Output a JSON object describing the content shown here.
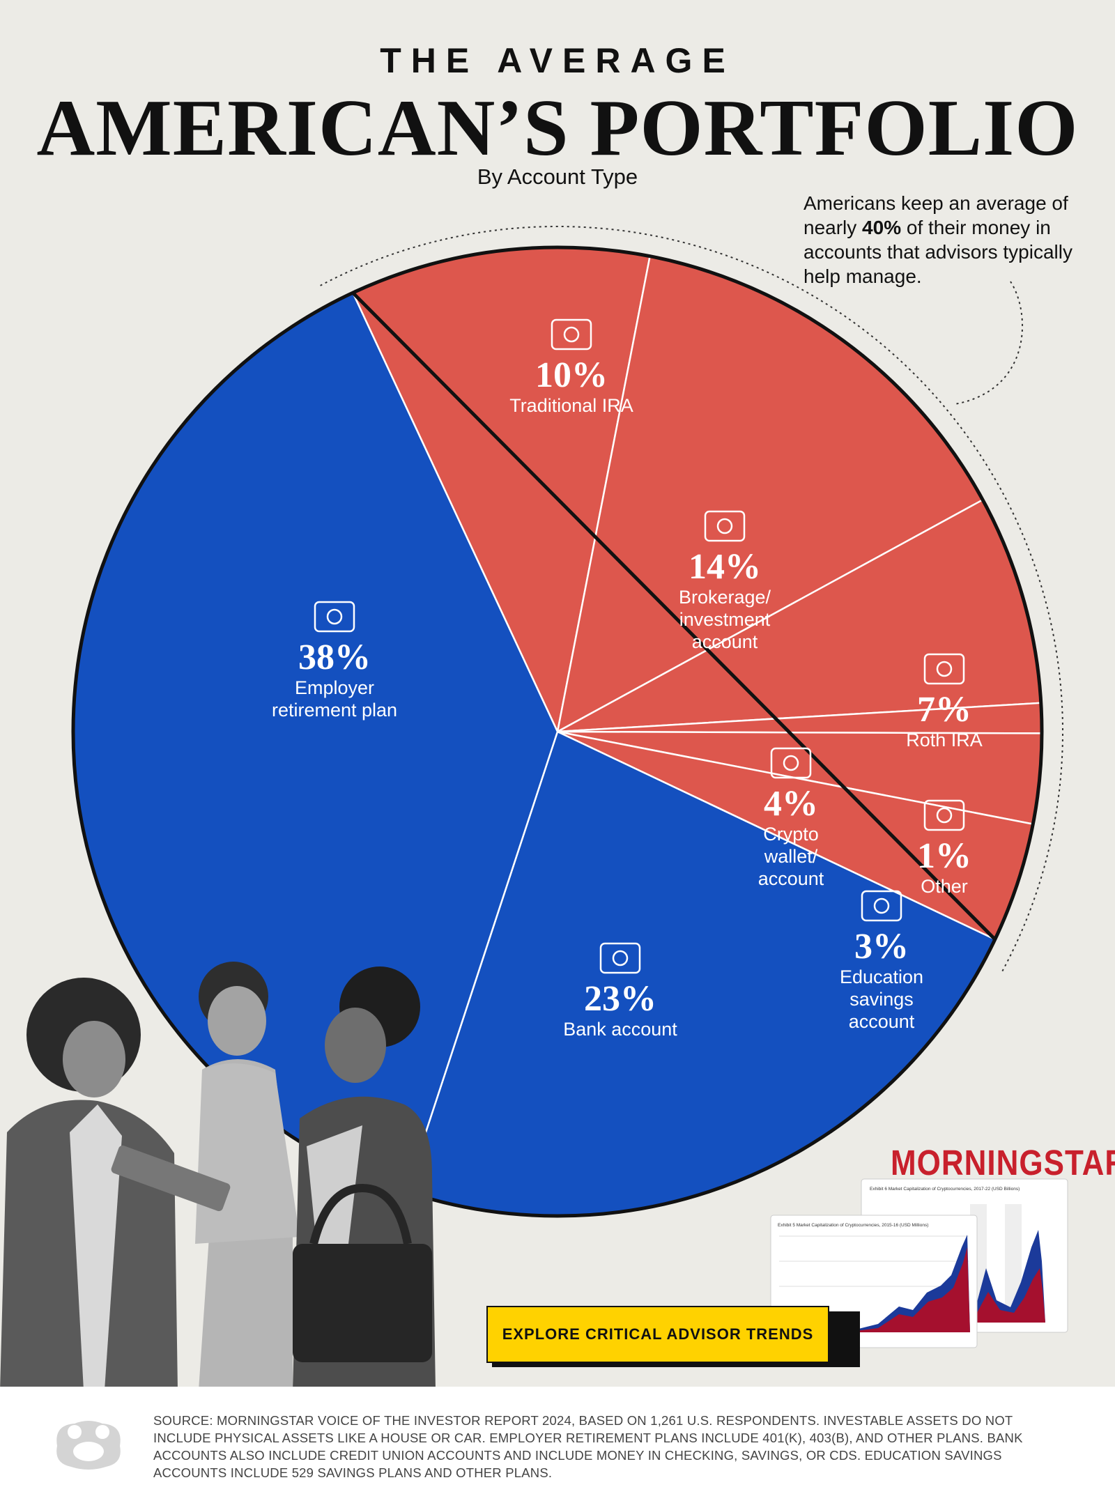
{
  "header": {
    "kicker": "THE AVERAGE",
    "title": "AMERICAN’S PORTFOLIO",
    "subtitle": "By Account Type"
  },
  "callout": {
    "text_before": "Americans keep an average of nearly ",
    "text_bold": "40%",
    "text_after": " of their money in accounts that advisors typically help manage."
  },
  "colors": {
    "blue": "#1450bf",
    "red": "#dd574d",
    "background": "#ecebe6",
    "cta": "#ffd200",
    "brand": "#c8202c"
  },
  "chart_data": {
    "type": "pie",
    "title": "THE AVERAGE AMERICAN’S PORTFOLIO",
    "subtitle": "By Account Type",
    "unit": "%",
    "slices": [
      {
        "label_lines": [
          "Employer",
          "retirement plan"
        ],
        "value": 38,
        "display": "38%",
        "group": "blue",
        "icon": "elderly-couple-icon"
      },
      {
        "label_lines": [
          "Bank account"
        ],
        "value": 23,
        "display": "23%",
        "group": "blue",
        "icon": "bank-icon"
      },
      {
        "label_lines": [
          "Traditional IRA"
        ],
        "value": 10,
        "display": "10%",
        "group": "red",
        "icon": "safe-tax-icon"
      },
      {
        "label_lines": [
          "Brokerage/",
          "investment",
          "account"
        ],
        "value": 14,
        "display": "14%",
        "group": "red",
        "icon": "growth-chart-icon"
      },
      {
        "label_lines": [
          "Roth IRA"
        ],
        "value": 7,
        "display": "7%",
        "group": "red",
        "icon": "tax-safe-icon"
      },
      {
        "label_lines": [
          "Crypto",
          "wallet/",
          "account"
        ],
        "value": 4,
        "display": "4%",
        "group": "red",
        "icon": "wallet-icon"
      },
      {
        "label_lines": [
          "Other"
        ],
        "value": 1,
        "display": "1%",
        "group": "red",
        "icon": "magnifier-icon"
      },
      {
        "label_lines": [
          "Education",
          "savings",
          "account"
        ],
        "value": 3,
        "display": "3%",
        "group": "red",
        "icon": "graduation-cap-icon"
      }
    ]
  },
  "brand": {
    "name": "MORNINGSTAR",
    "mark": "®",
    "thumb1_title": "Exhibit 6 Market Capitalization of Cryptocurrencies, 2017-22 (USD Billions)",
    "thumb2_title": "Exhibit 5 Market Capitalization of Cryptocurrencies, 2015-16 (USD Millions)"
  },
  "cta": {
    "label": "EXPLORE CRITICAL ADVISOR TRENDS"
  },
  "footer": {
    "source": "SOURCE: MORNINGSTAR VOICE OF THE INVESTOR REPORT 2024, BASED ON 1,261 U.S. RESPONDENTS. INVESTABLE ASSETS DO NOT INCLUDE PHYSICAL ASSETS LIKE A HOUSE OR CAR. EMPLOYER RETIREMENT PLANS INCLUDE 401(K), 403(B), AND OTHER PLANS. BANK ACCOUNTS ALSO INCLUDE CREDIT UNION ACCOUNTS AND INCLUDE MONEY IN CHECKING, SAVINGS, OR CDS. EDUCATION SAVINGS ACCOUNTS INCLUDE 529 SAVINGS PLANS AND OTHER PLANS."
  }
}
